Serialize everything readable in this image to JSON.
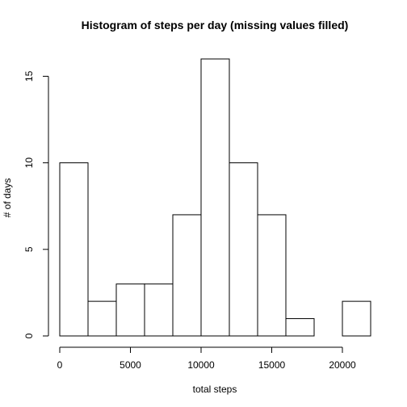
{
  "chart_data": {
    "type": "bar",
    "title": "Histogram of steps per day (missing values filled)",
    "xlabel": "total steps",
    "ylabel": "# of days",
    "bins": [
      {
        "from": 0,
        "to": 2000,
        "count": 10
      },
      {
        "from": 2000,
        "to": 4000,
        "count": 2
      },
      {
        "from": 4000,
        "to": 6000,
        "count": 3
      },
      {
        "from": 6000,
        "to": 8000,
        "count": 3
      },
      {
        "from": 8000,
        "to": 10000,
        "count": 7
      },
      {
        "from": 10000,
        "to": 12000,
        "count": 16
      },
      {
        "from": 12000,
        "to": 14000,
        "count": 10
      },
      {
        "from": 14000,
        "to": 16000,
        "count": 7
      },
      {
        "from": 16000,
        "to": 18000,
        "count": 1
      },
      {
        "from": 18000,
        "to": 20000,
        "count": 0
      },
      {
        "from": 20000,
        "to": 22000,
        "count": 2
      }
    ],
    "x_ticks": [
      0,
      5000,
      10000,
      15000,
      20000
    ],
    "x_tick_labels": [
      "0",
      "5000",
      "10000",
      "15000",
      "20000"
    ],
    "y_ticks": [
      0,
      5,
      10,
      15
    ],
    "y_tick_labels": [
      "0",
      "5",
      "10",
      "15"
    ],
    "xlim": [
      0,
      22000
    ],
    "ylim": [
      0,
      16
    ],
    "grid": false,
    "legend": "none",
    "bar_fill": "#ffffff",
    "bar_stroke": "#000000"
  }
}
